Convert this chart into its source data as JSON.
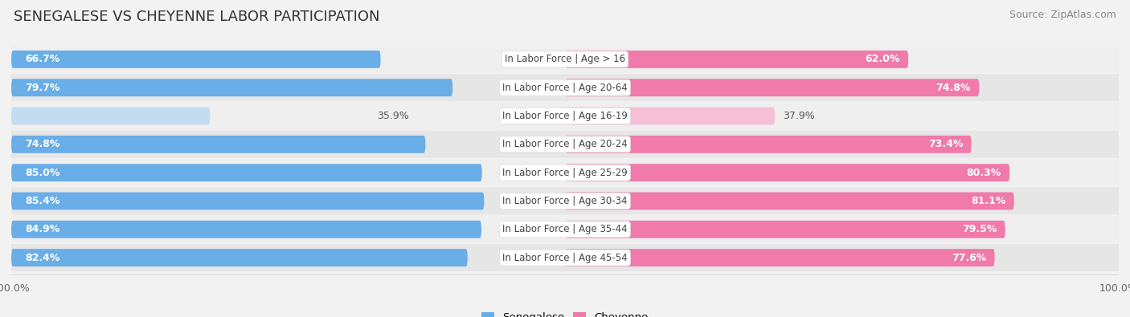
{
  "title": "SENEGALESE VS CHEYENNE LABOR PARTICIPATION",
  "source": "Source: ZipAtlas.com",
  "categories": [
    "In Labor Force | Age > 16",
    "In Labor Force | Age 20-64",
    "In Labor Force | Age 16-19",
    "In Labor Force | Age 20-24",
    "In Labor Force | Age 25-29",
    "In Labor Force | Age 30-34",
    "In Labor Force | Age 35-44",
    "In Labor Force | Age 45-54"
  ],
  "senegalese": [
    66.7,
    79.7,
    35.9,
    74.8,
    85.0,
    85.4,
    84.9,
    82.4
  ],
  "cheyenne": [
    62.0,
    74.8,
    37.9,
    73.4,
    80.3,
    81.1,
    79.5,
    77.6
  ],
  "senegalese_color_full": "#6aaee8",
  "senegalese_color_light": "#c5dcf0",
  "cheyenne_color_full": "#f07aaa",
  "cheyenne_color_light": "#f5c0d5",
  "label_threshold": 50,
  "bar_height": 0.62,
  "row_bg_even": "#efefef",
  "row_bg_odd": "#e6e6e6",
  "background_color": "#f2f2f2",
  "title_fontsize": 13,
  "source_fontsize": 9,
  "bar_label_fontsize": 9,
  "category_fontsize": 8.5,
  "legend_fontsize": 9.5,
  "axis_label_fontsize": 9
}
